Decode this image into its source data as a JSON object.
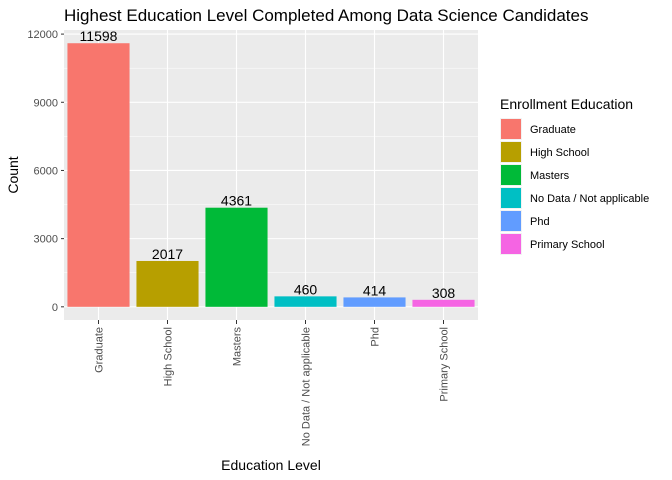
{
  "chart_data": {
    "type": "bar",
    "title": "Highest Education Level Completed Among Data Science Candidates",
    "xlabel": "Education Level",
    "ylabel": "Count",
    "categories": [
      "Graduate",
      "High School",
      "Masters",
      "No Data / Not applicable",
      "Phd",
      "Primary School"
    ],
    "values": [
      11598,
      2017,
      4361,
      460,
      414,
      308
    ],
    "colors": [
      "#F8766D",
      "#B79F00",
      "#00BA38",
      "#00BFC4",
      "#619CFF",
      "#F564E3"
    ],
    "ylim": [
      -580,
      12180
    ],
    "yticks": [
      0,
      3000,
      6000,
      9000,
      12000
    ],
    "grid": true,
    "panel_background": "#EBEBEB",
    "legend": {
      "title": "Enrollment Education",
      "position": "right",
      "entries": [
        "Graduate",
        "High School",
        "Masters",
        "No Data / Not applicable",
        "Phd",
        "Primary School"
      ]
    }
  }
}
